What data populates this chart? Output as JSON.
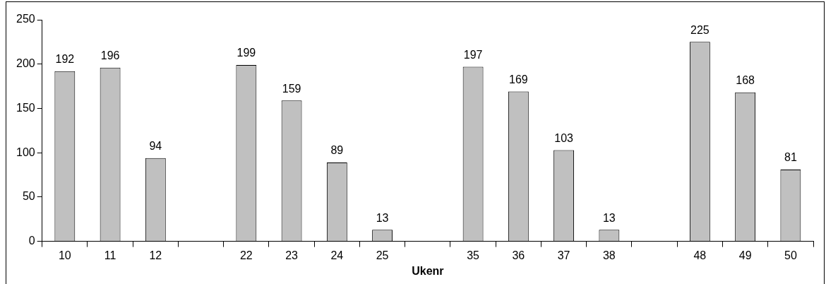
{
  "chart_data": {
    "type": "bar",
    "xlabel": "Ukenr",
    "categories": [
      "10",
      "11",
      "12",
      null,
      "22",
      "23",
      "24",
      "25",
      null,
      "35",
      "36",
      "37",
      "38",
      null,
      "48",
      "49",
      "50"
    ],
    "values": [
      192,
      196,
      94,
      null,
      199,
      159,
      89,
      13,
      null,
      197,
      169,
      103,
      13,
      null,
      225,
      168,
      81
    ],
    "color": "#c0c0c0",
    "ylim": [
      0,
      250
    ],
    "yticks": [
      0,
      50,
      100,
      150,
      200,
      250
    ],
    "grid": false,
    "legend": false,
    "data_labels": true
  }
}
